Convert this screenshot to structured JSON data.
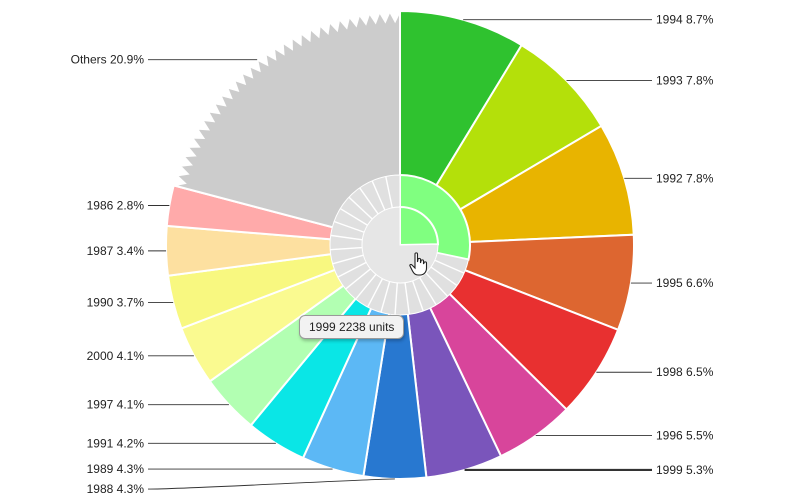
{
  "chart_data": {
    "type": "pie",
    "start_category": "1994",
    "categories": [
      "1994",
      "1993",
      "1992",
      "1995",
      "1998",
      "1996",
      "1999",
      "1988",
      "1989",
      "1991",
      "1997",
      "2000",
      "1990",
      "1987",
      "1986",
      "Others"
    ],
    "values": [
      8.7,
      7.8,
      7.8,
      6.6,
      6.5,
      5.5,
      5.3,
      4.3,
      4.3,
      4.2,
      4.1,
      4.1,
      3.7,
      3.4,
      2.8,
      20.9
    ],
    "labels": [
      "1994 8.7%",
      "1993 7.8%",
      "1992 7.8%",
      "1995 6.6%",
      "1998 6.5%",
      "1996 5.5%",
      "1999 5.3%",
      "1988 4.3%",
      "1989 4.3%",
      "1991 4.2%",
      "1997 4.1%",
      "2000 4.1%",
      "1990 3.7%",
      "1987 3.4%",
      "1986 2.8%",
      "Others 20.9%"
    ],
    "colors": [
      "#2fc22f",
      "#b4e00a",
      "#e8b400",
      "#dd6630",
      "#e83030",
      "#d8459b",
      "#7a55bb",
      "#2878d0",
      "#5cb8f5",
      "#0ae6e6",
      "#b2ffb2",
      "#fafa90",
      "#f8f880",
      "#fde0a0",
      "#ffaaaa",
      "#cccccc"
    ],
    "inner_ring": {
      "highlight_color": "#80ff80",
      "base_color": "#e0e0e0"
    },
    "hover": {
      "category": "1999",
      "tooltip": "1999 2238 units"
    }
  }
}
